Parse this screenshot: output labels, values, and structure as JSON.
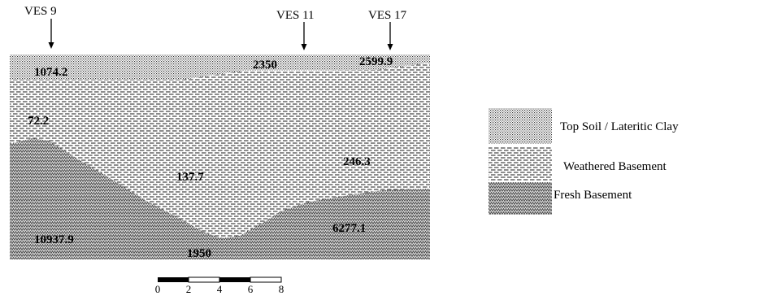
{
  "section": {
    "stations": [
      {
        "id": "ves9",
        "label": "VES 9"
      },
      {
        "id": "ves11",
        "label": "VES 11"
      },
      {
        "id": "ves17",
        "label": "VES 17"
      }
    ],
    "resistivity_values": [
      {
        "id": "v1074",
        "text": "1074.2"
      },
      {
        "id": "v2350",
        "text": "2350"
      },
      {
        "id": "v2599",
        "text": "2599.9"
      },
      {
        "id": "v72",
        "text": "72.2"
      },
      {
        "id": "v137",
        "text": "137.7"
      },
      {
        "id": "v246",
        "text": "246.3"
      },
      {
        "id": "v10937",
        "text": "10937.9"
      },
      {
        "id": "v1950",
        "text": "1950"
      },
      {
        "id": "v6277",
        "text": "6277.1"
      }
    ]
  },
  "legend": {
    "items": [
      {
        "id": "top-soil",
        "label": "Top Soil / Lateritic Clay"
      },
      {
        "id": "weathered",
        "label": "Weathered Basement"
      },
      {
        "id": "fresh",
        "label": "Fresh Basement"
      }
    ]
  },
  "scale_bar": {
    "ticks": [
      "0",
      "2",
      "4",
      "6",
      "8"
    ]
  }
}
